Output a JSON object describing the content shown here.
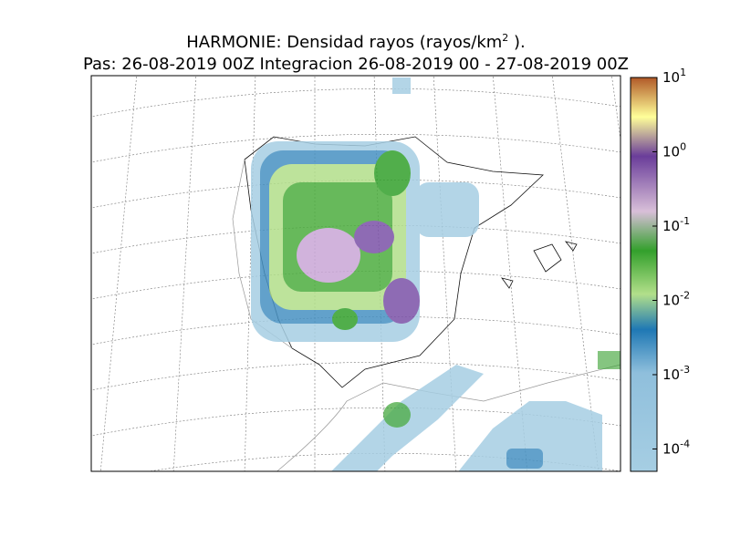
{
  "title": {
    "line1": "HARMONIE: Densidad rayos  (rayos/km",
    "line1_sup": "2",
    "line1_end": " ).",
    "line2": "Pas: 26-08-2019 00Z Integracion 26-08-2019 00 - 27-08-2019 00Z"
  },
  "colorbar": {
    "scale": "log",
    "lim": [
      5e-05,
      10
    ],
    "ticks": [
      {
        "value": 10,
        "label": "10",
        "exponent": "1"
      },
      {
        "value": 1,
        "label": "10",
        "exponent": "0"
      },
      {
        "value": 0.1,
        "label": "10",
        "exponent": "-1"
      },
      {
        "value": 0.01,
        "label": "10",
        "exponent": "-2"
      },
      {
        "value": 0.001,
        "label": "10",
        "exponent": "-3"
      },
      {
        "value": 0.0001,
        "label": "10",
        "exponent": "-4"
      }
    ]
  }
}
